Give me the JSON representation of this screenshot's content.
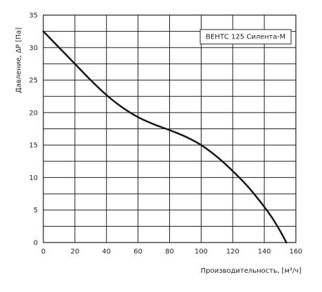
{
  "chart_data": {
    "type": "line",
    "title": "",
    "xlabel": "Производительность, [м³/ч]",
    "ylabel": "Давление, ΔP [Па]",
    "xlim": [
      0,
      160
    ],
    "ylim": [
      0,
      35
    ],
    "x_ticks": [
      0,
      20,
      40,
      60,
      80,
      100,
      120,
      140,
      160
    ],
    "y_ticks": [
      0,
      5,
      10,
      15,
      20,
      25,
      30,
      35
    ],
    "grid": true,
    "legend_position": "top-right",
    "series": [
      {
        "name": "ВЕНТС 125 Силента-М",
        "color": "#1a1a1a",
        "x": [
          0,
          10,
          20,
          30,
          40,
          50,
          60,
          70,
          80,
          90,
          100,
          110,
          120,
          130,
          140,
          145,
          150,
          154
        ],
        "y": [
          32.5,
          30.0,
          27.5,
          25.0,
          22.7,
          20.8,
          19.3,
          18.2,
          17.3,
          16.3,
          15.0,
          13.2,
          11.0,
          8.5,
          5.5,
          3.8,
          1.8,
          0
        ]
      }
    ]
  }
}
